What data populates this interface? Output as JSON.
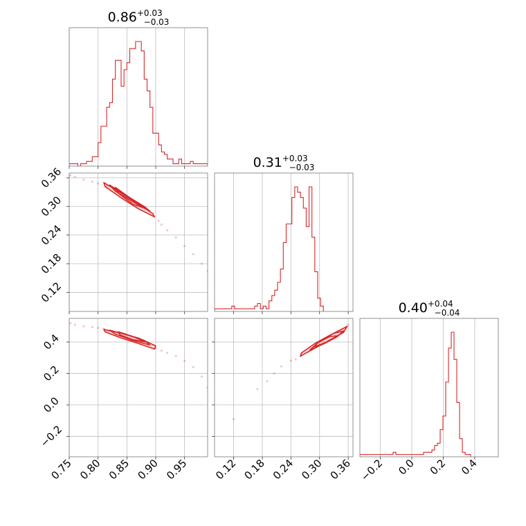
{
  "colors": {
    "accent": "#d62728",
    "frame": "#777777",
    "grid": "#bdbdbd"
  },
  "chart_data": {
    "type": "corner",
    "parameters": [
      {
        "summary": {
          "median": "0.86",
          "plus": "+0.03",
          "minus": "−0.03"
        },
        "range": [
          0.75,
          0.99
        ],
        "ticks": [
          0.75,
          0.8,
          0.85,
          0.9,
          0.95
        ],
        "tick_labels": [
          "0.75",
          "0.80",
          "0.85",
          "0.90",
          "0.95"
        ]
      },
      {
        "summary": {
          "median": "0.31",
          "plus": "+0.03",
          "minus": "−0.03"
        },
        "range": [
          0.08,
          0.37
        ],
        "ticks": [
          0.12,
          0.18,
          0.24,
          0.3,
          0.36
        ],
        "tick_labels": [
          "0.12",
          "0.18",
          "0.24",
          "0.30",
          "0.36"
        ]
      },
      {
        "summary": {
          "median": "0.40",
          "plus": "+0.04",
          "minus": "−0.04"
        },
        "range": [
          -0.33,
          0.55
        ],
        "ticks": [
          -0.2,
          0.0,
          0.2,
          0.4
        ],
        "tick_labels": [
          "−0.2",
          "0.0",
          "0.2",
          "0.4"
        ]
      }
    ],
    "histograms": [
      {
        "bin_start": 0.75,
        "bin_width": 0.005,
        "counts": [
          1,
          1,
          1,
          0,
          1,
          1,
          2,
          2,
          4,
          4,
          10,
          17,
          17,
          25,
          27,
          37,
          45,
          45,
          34,
          41,
          44,
          50,
          50,
          53,
          53,
          49,
          37,
          32,
          25,
          14,
          14,
          9,
          6,
          5,
          3,
          3,
          1,
          1,
          3,
          1,
          1,
          1,
          2,
          1,
          1,
          1,
          1,
          1
        ]
      },
      {
        "bin_start": 0.08,
        "bin_width": 0.006,
        "counts": [
          1,
          1,
          1,
          1,
          1,
          1,
          2,
          1,
          1,
          1,
          1,
          1,
          1,
          1,
          2,
          3,
          1,
          2,
          1,
          4,
          6,
          8,
          11,
          16,
          26,
          33,
          33,
          43,
          47,
          45,
          43,
          39,
          32,
          47,
          28,
          15,
          5,
          2
        ]
      },
      {
        "bin_start": -0.33,
        "bin_width": 0.0176,
        "counts": [
          1,
          1,
          1,
          1,
          1,
          1,
          1,
          1,
          1,
          1,
          1,
          1,
          2,
          1,
          1,
          1,
          1,
          1,
          1,
          1,
          1,
          1,
          1,
          2,
          2,
          2,
          3,
          5,
          6,
          12,
          18,
          33,
          48,
          55,
          43,
          24,
          8,
          2,
          1,
          1
        ]
      }
    ],
    "pairs": [
      {
        "x_param": 0,
        "y_param": 1,
        "scatter": {
          "x": [
            0.752,
            0.76,
            0.775,
            0.79,
            0.8,
            0.815,
            0.905,
            0.91,
            0.92,
            0.935,
            0.95,
            0.965,
            0.98,
            0.99
          ],
          "y": [
            0.365,
            0.362,
            0.356,
            0.352,
            0.348,
            0.344,
            0.27,
            0.262,
            0.25,
            0.235,
            0.217,
            0.2,
            0.18,
            0.165
          ]
        },
        "contours": [
          {
            "x": [
              0.81,
              0.84,
              0.87,
              0.895,
              0.898,
              0.87,
              0.84,
              0.812
            ],
            "y": [
              0.35,
              0.328,
              0.305,
              0.285,
              0.278,
              0.295,
              0.318,
              0.342
            ]
          },
          {
            "x": [
              0.82,
              0.85,
              0.88,
              0.89,
              0.86,
              0.83
            ],
            "y": [
              0.345,
              0.322,
              0.3,
              0.29,
              0.31,
              0.332
            ]
          },
          {
            "x": [
              0.83,
              0.86,
              0.884,
              0.86,
              0.835
            ],
            "y": [
              0.34,
              0.314,
              0.295,
              0.305,
              0.328
            ]
          }
        ]
      },
      {
        "x_param": 0,
        "y_param": 2,
        "scatter": {
          "x": [
            0.752,
            0.76,
            0.775,
            0.79,
            0.8,
            0.81,
            0.9,
            0.91,
            0.92,
            0.935,
            0.95,
            0.965,
            0.98,
            0.99
          ],
          "y": [
            0.52,
            0.51,
            0.5,
            0.495,
            0.49,
            0.485,
            0.36,
            0.345,
            0.33,
            0.31,
            0.28,
            0.24,
            0.18,
            0.11
          ]
        },
        "contours": [
          {
            "x": [
              0.81,
              0.84,
              0.87,
              0.9,
              0.898,
              0.87,
              0.84,
              0.812
            ],
            "y": [
              0.48,
              0.455,
              0.425,
              0.375,
              0.355,
              0.39,
              0.425,
              0.465
            ]
          },
          {
            "x": [
              0.82,
              0.85,
              0.88,
              0.89,
              0.86,
              0.83
            ],
            "y": [
              0.475,
              0.445,
              0.41,
              0.38,
              0.41,
              0.45
            ]
          },
          {
            "x": [
              0.835,
              0.86,
              0.882,
              0.86,
              0.838
            ],
            "y": [
              0.465,
              0.435,
              0.4,
              0.415,
              0.445
            ]
          }
        ]
      },
      {
        "x_param": 1,
        "y_param": 2,
        "scatter": {
          "x": [
            0.12,
            0.17,
            0.19,
            0.205,
            0.22,
            0.24,
            0.25,
            0.26,
            0.355,
            0.36
          ],
          "y": [
            -0.09,
            0.1,
            0.15,
            0.2,
            0.245,
            0.28,
            0.29,
            0.31,
            0.49,
            0.51
          ]
        },
        "contours": [
          {
            "x": [
              0.26,
              0.29,
              0.32,
              0.35,
              0.358,
              0.352,
              0.32,
              0.29,
              0.262
            ],
            "y": [
              0.31,
              0.36,
              0.41,
              0.46,
              0.5,
              0.49,
              0.44,
              0.39,
              0.33
            ]
          },
          {
            "x": [
              0.28,
              0.31,
              0.335,
              0.35,
              0.33,
              0.3
            ],
            "y": [
              0.35,
              0.39,
              0.43,
              0.47,
              0.455,
              0.405
            ]
          },
          {
            "x": [
              0.29,
              0.315,
              0.34,
              0.322,
              0.296
            ],
            "y": [
              0.37,
              0.4,
              0.44,
              0.435,
              0.395
            ]
          }
        ]
      }
    ]
  }
}
